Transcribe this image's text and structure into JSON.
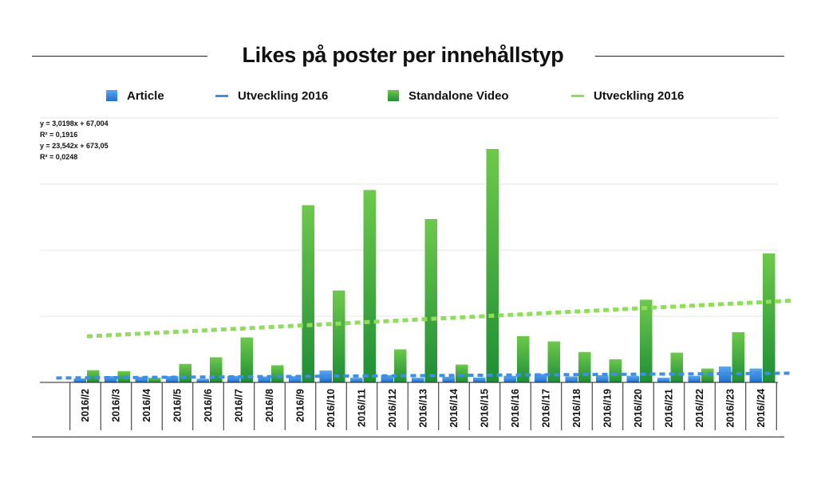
{
  "chart_data": {
    "type": "bar",
    "title": "Likes på poster per innehållstyp",
    "xlabel": "",
    "ylabel": "",
    "ylim": [
      0,
      4000
    ],
    "grid": true,
    "legend_position": "top",
    "categories": [
      "2016//2",
      "2016//3",
      "2016//4",
      "2016//5",
      "2016//6",
      "2016//7",
      "2016//8",
      "2016//9",
      "2016//10",
      "2016//11",
      "2016//12",
      "2016//13",
      "2016//14",
      "2016//15",
      "2016//16",
      "2016//17",
      "2016//18",
      "2016//19",
      "2016//20",
      "2016//21",
      "2016//22",
      "2016//23",
      "2016//24"
    ],
    "series": [
      {
        "name": "Article",
        "color": "#2f86e0",
        "values": [
          60,
          95,
          85,
          95,
          55,
          100,
          90,
          95,
          180,
          70,
          110,
          70,
          85,
          75,
          100,
          130,
          90,
          110,
          100,
          70,
          100,
          240,
          210
        ]
      },
      {
        "name": "Standalone Video",
        "color": "#2fa33a",
        "values": [
          185,
          170,
          70,
          280,
          380,
          680,
          260,
          2680,
          1390,
          2910,
          500,
          2470,
          270,
          3530,
          700,
          620,
          460,
          350,
          1250,
          450,
          210,
          760,
          1950
        ]
      }
    ],
    "trendlines": [
      {
        "name": "Utveckling 2016",
        "color": "#3b8fe6",
        "x_start": 0,
        "x_end": 24,
        "equation": "y = 3,0198x + 67,004",
        "r2": "R² = 0,1916",
        "slope": 3.0198,
        "intercept": 67.004
      },
      {
        "name": "Utveckling 2016",
        "color": "#8fde5a",
        "x_start": 1,
        "x_end": 24,
        "equation": "y = 23,542x + 673,05",
        "r2": "R² = 0,0248",
        "slope": 23.542,
        "intercept": 673.05
      }
    ]
  }
}
